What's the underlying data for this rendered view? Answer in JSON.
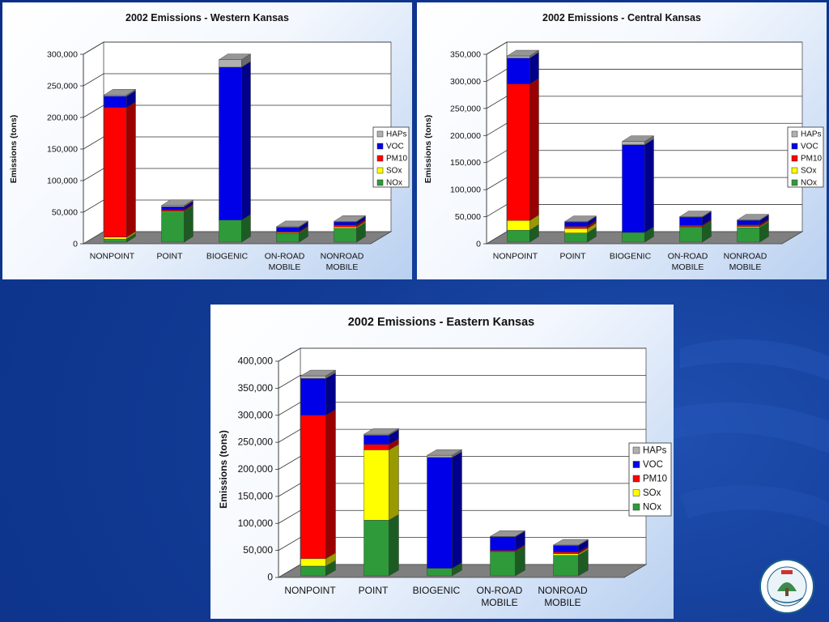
{
  "colors": {
    "HAPs": "#b0b0b0",
    "VOC": "#0000e8",
    "PM10": "#ff0000",
    "SOx": "#ffff00",
    "NOx": "#2e9a3a"
  },
  "seal": {
    "icon": "kdhe-seal-icon",
    "text": "Kansas Department of Health & Environment"
  },
  "chart_data": [
    {
      "type": "bar",
      "stacked": true,
      "title": "2002 Emissions - Western Kansas",
      "ylabel": "Emissions (tons)",
      "xlabel": "",
      "categories": [
        "NONPOINT",
        "POINT",
        "BIOGENIC",
        "ON-ROAD MOBILE",
        "NONROAD MOBILE"
      ],
      "ylim": [
        0,
        300000
      ],
      "yticks": [
        0,
        50000,
        100000,
        150000,
        200000,
        250000,
        300000
      ],
      "ytick_labels": [
        "0",
        "50,000",
        "100,000",
        "150,000",
        "200,000",
        "250,000",
        "300,000"
      ],
      "legend_position": "right",
      "legend": [
        "HAPs",
        "VOC",
        "PM10",
        "SOx",
        "NOx"
      ],
      "series": [
        {
          "name": "NOx",
          "values": [
            5000,
            48000,
            35000,
            14000,
            22000
          ]
        },
        {
          "name": "SOx",
          "values": [
            3000,
            1000,
            0,
            1000,
            2000
          ]
        },
        {
          "name": "PM10",
          "values": [
            205000,
            2000,
            0,
            1500,
            3000
          ]
        },
        {
          "name": "VOC",
          "values": [
            18000,
            5000,
            242000,
            7000,
            5000
          ]
        },
        {
          "name": "HAPs",
          "values": [
            2000,
            2000,
            12000,
            1000,
            1000
          ]
        }
      ]
    },
    {
      "type": "bar",
      "stacked": true,
      "title": "2002 Emissions - Central Kansas",
      "ylabel": "Emissions (tons)",
      "xlabel": "",
      "categories": [
        "NONPOINT",
        "POINT",
        "BIOGENIC",
        "ON-ROAD MOBILE",
        "NONROAD MOBILE"
      ],
      "ylim": [
        0,
        350000
      ],
      "yticks": [
        0,
        50000,
        100000,
        150000,
        200000,
        250000,
        300000,
        350000
      ],
      "ytick_labels": [
        "0",
        "50,000",
        "100,000",
        "150,000",
        "200,000",
        "250,000",
        "300,000",
        "350,000"
      ],
      "legend_position": "right",
      "legend": [
        "HAPs",
        "VOC",
        "PM10",
        "SOx",
        "NOx"
      ],
      "series": [
        {
          "name": "NOx",
          "values": [
            22000,
            17000,
            18000,
            28000,
            27000
          ]
        },
        {
          "name": "SOx",
          "values": [
            18000,
            8000,
            0,
            1000,
            2000
          ]
        },
        {
          "name": "PM10",
          "values": [
            252000,
            4000,
            0,
            2000,
            3000
          ]
        },
        {
          "name": "VOC",
          "values": [
            48000,
            8000,
            162000,
            15000,
            8000
          ]
        },
        {
          "name": "HAPs",
          "values": [
            4000,
            1000,
            6000,
            1000,
            1000
          ]
        }
      ]
    },
    {
      "type": "bar",
      "stacked": true,
      "title": "2002 Emissions - Eastern Kansas",
      "ylabel": "Emissions (tons)",
      "xlabel": "",
      "categories": [
        "NONPOINT",
        "POINT",
        "BIOGENIC",
        "ON-ROAD MOBILE",
        "NONROAD MOBILE"
      ],
      "ylim": [
        0,
        400000
      ],
      "yticks": [
        0,
        50000,
        100000,
        150000,
        200000,
        250000,
        300000,
        350000,
        400000
      ],
      "ytick_labels": [
        "0",
        "50,000",
        "100,000",
        "150,000",
        "200,000",
        "250,000",
        "300,000",
        "350,000",
        "400,000"
      ],
      "legend_position": "right",
      "legend": [
        "HAPs",
        "VOC",
        "PM10",
        "SOx",
        "NOx"
      ],
      "series": [
        {
          "name": "NOx",
          "values": [
            18000,
            103000,
            14000,
            44000,
            38000
          ]
        },
        {
          "name": "SOx",
          "values": [
            14000,
            130000,
            0,
            1000,
            3000
          ]
        },
        {
          "name": "PM10",
          "values": [
            265000,
            10000,
            0,
            2000,
            3000
          ]
        },
        {
          "name": "VOC",
          "values": [
            68000,
            17000,
            205000,
            25000,
            12000
          ]
        },
        {
          "name": "HAPs",
          "values": [
            5000,
            2000,
            4000,
            1000,
            1000
          ]
        }
      ]
    }
  ]
}
